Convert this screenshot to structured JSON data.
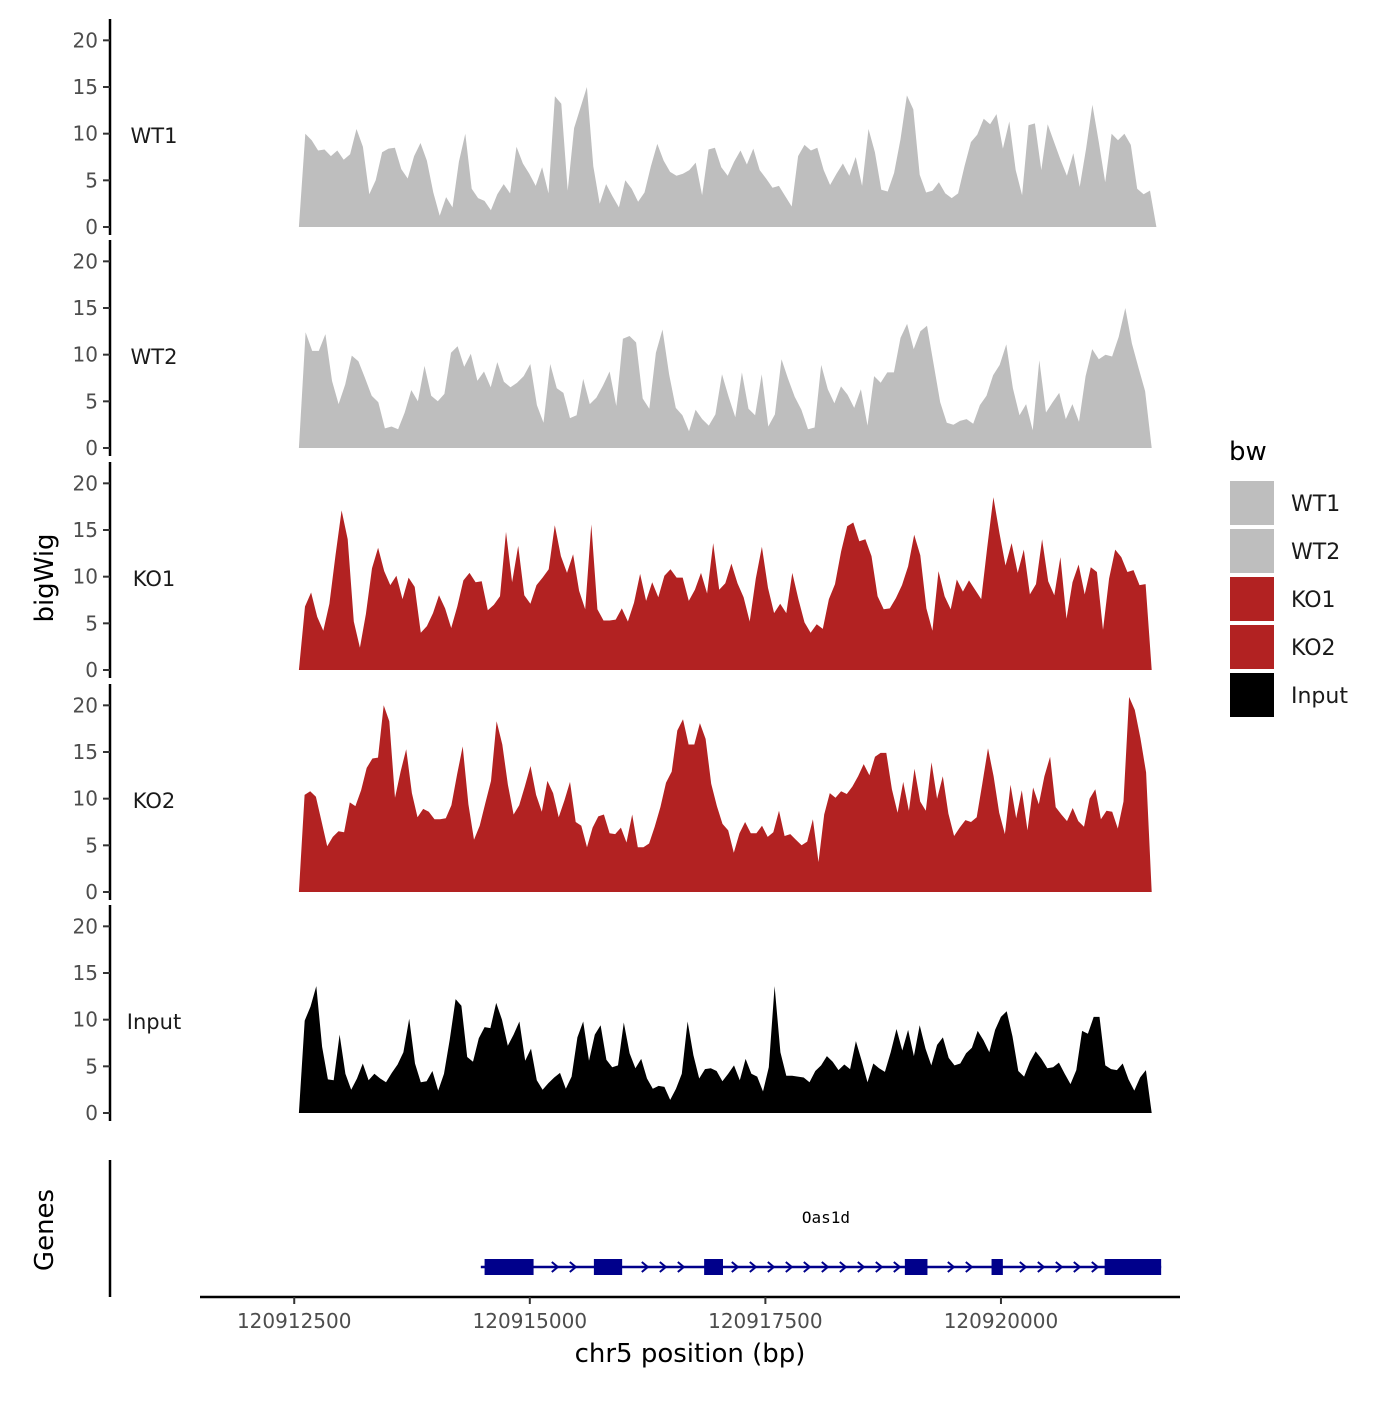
{
  "chart_data": {
    "type": "area",
    "chromosome": "chr5",
    "ylabel": "bigWig",
    "xlabel": "chr5 position (bp)",
    "gene_track_label": "Genes",
    "xlim": [
      120911500,
      120921900
    ],
    "ylim": [
      0,
      21
    ],
    "y_ticks": [
      0,
      5,
      10,
      15,
      20
    ],
    "x_ticks": [
      120912500,
      120915000,
      120917500,
      120920000
    ],
    "x_tick_labels": [
      "120912500",
      "120915000",
      "120917500",
      "120920000"
    ],
    "legend": {
      "title": "bw",
      "entries": [
        {
          "label": "WT1",
          "color": "#bebebe"
        },
        {
          "label": "WT2",
          "color": "#bebebe"
        },
        {
          "label": "KO1",
          "color": "#b22222"
        },
        {
          "label": "KO2",
          "color": "#b22222"
        },
        {
          "label": "Input",
          "color": "#000000"
        }
      ]
    },
    "tracks": [
      {
        "name": "WT1",
        "color": "#bebebe",
        "start": 120912550,
        "end": 120921650,
        "values": [
          0,
          10,
          9.3,
          8.2,
          8.3,
          7.6,
          8.2,
          7.2,
          7.8,
          10.5,
          8.6,
          3.5,
          5,
          8,
          8.4,
          8.5,
          6.2,
          5.2,
          7.6,
          9,
          7.1,
          3.7,
          1.2,
          3.2,
          2.1,
          7,
          10,
          4.1,
          3.1,
          2.8,
          1.8,
          3.5,
          4.6,
          3.6,
          8.6,
          6.8,
          5.7,
          4.4,
          6.4,
          3.6,
          14,
          13.2,
          3.9,
          10.6,
          12.8,
          15,
          6.5,
          2.5,
          4.6,
          3.3,
          2.1,
          5,
          4.1,
          2.7,
          3.7,
          6.5,
          8.9,
          7.1,
          5.9,
          5.5,
          5.7,
          6.1,
          6.9,
          3.4,
          8.3,
          8.5,
          6.4,
          5.5,
          7,
          8.2,
          6.7,
          8.4,
          6.1,
          5.2,
          4.2,
          4.4,
          3.3,
          2.2,
          7.6,
          8.8,
          8.2,
          8.5,
          6.1,
          4.5,
          5.7,
          6.8,
          5.5,
          7.5,
          4.4,
          10.5,
          8,
          4,
          3.8,
          5.8,
          9.4,
          14.1,
          12.6,
          5.6,
          3.7,
          3.9,
          4.8,
          3.6,
          3.1,
          3.6,
          6.5,
          9.1,
          9.9,
          11.6,
          11,
          12.1,
          8.4,
          11.3,
          6.1,
          3.4,
          10.9,
          11.1,
          6.1,
          11,
          9.1,
          7.2,
          5.5,
          7.9,
          4.3,
          8.4,
          13.1,
          9.1,
          4.8,
          10,
          9.3,
          10,
          8.8,
          4.1,
          3.5,
          3.9,
          0
        ]
      },
      {
        "name": "WT2",
        "color": "#bebebe",
        "start": 120912550,
        "end": 120921600,
        "values": [
          0,
          12.4,
          10.4,
          10.4,
          12.2,
          7.2,
          4.7,
          6.8,
          9.9,
          9.3,
          7.5,
          5.6,
          4.9,
          2.1,
          2.3,
          2,
          3.8,
          6.2,
          5,
          8.8,
          5.6,
          5,
          5.8,
          10.2,
          10.9,
          8.7,
          10.1,
          7.2,
          8.2,
          6.5,
          9.2,
          7.1,
          6.5,
          7,
          7.7,
          9,
          4.6,
          2.7,
          9,
          6.4,
          5.9,
          3.2,
          3.5,
          7.4,
          4.7,
          5.4,
          6.7,
          8.2,
          4.5,
          11.7,
          12,
          11.3,
          5.3,
          4.2,
          10.2,
          12.7,
          7.9,
          4.3,
          3.5,
          1.8,
          4.1,
          3.1,
          2.4,
          3.6,
          7.9,
          5.5,
          3.3,
          8.1,
          4.2,
          3.5,
          7.9,
          2.3,
          3.6,
          9.5,
          7.4,
          5.5,
          4.1,
          2,
          2.2,
          8.9,
          6.3,
          4.8,
          6.6,
          5.7,
          4.3,
          6.3,
          2.4,
          7.7,
          7,
          8.1,
          8.1,
          11.8,
          13.3,
          10.6,
          12.5,
          13.1,
          9,
          4.9,
          2.7,
          2.5,
          2.9,
          3.1,
          2.6,
          4.6,
          5.6,
          7.8,
          8.9,
          11.1,
          6.4,
          3.5,
          4.7,
          1.9,
          9.4,
          3.8,
          4.9,
          5.9,
          3.1,
          4.7,
          2.8,
          7.7,
          10.6,
          9.5,
          10,
          9.8,
          11.9,
          15,
          11.2,
          8.6,
          6.1,
          0
        ]
      },
      {
        "name": "KO1",
        "color": "#b22222",
        "start": 120912550,
        "end": 120921600,
        "values": [
          0,
          6.8,
          8.3,
          5.7,
          4.2,
          7.1,
          12.3,
          17.1,
          14,
          5.2,
          2.4,
          6,
          10.9,
          13.1,
          10.6,
          9.1,
          10.1,
          7.6,
          9.9,
          8.9,
          4,
          4.7,
          6.1,
          8,
          6.6,
          4.5,
          6.8,
          9.6,
          10.4,
          9.4,
          9.5,
          6.4,
          7,
          7.9,
          14.8,
          9.4,
          13.3,
          8,
          7.1,
          9.1,
          9.9,
          10.8,
          15.5,
          12.2,
          10.4,
          12.4,
          8.5,
          6.5,
          15.6,
          6.5,
          5.3,
          5.3,
          5.4,
          6.6,
          5.2,
          7.2,
          10.3,
          7.4,
          9.4,
          7.8,
          10.1,
          10.8,
          9.9,
          9.9,
          7.4,
          8.6,
          10.4,
          8.2,
          13.6,
          8.6,
          9.3,
          11.4,
          9.3,
          7.8,
          5.2,
          9.8,
          13.2,
          8.8,
          6.1,
          7.1,
          6.1,
          10.4,
          7.6,
          5.1,
          4,
          4.9,
          4.4,
          7.6,
          9.2,
          12.7,
          15.4,
          15.8,
          13.8,
          14,
          12.2,
          7.9,
          6.5,
          6.6,
          7.7,
          9.1,
          11.1,
          14.5,
          12.3,
          6.6,
          4.2,
          10.6,
          7.9,
          6.5,
          9.7,
          8.4,
          9.6,
          8.6,
          7.6,
          13.2,
          18.5,
          14.7,
          11.2,
          13.6,
          10.4,
          12.9,
          8.1,
          9.2,
          14,
          9.5,
          8,
          12.1,
          5.5,
          9.4,
          11.3,
          8.1,
          11,
          10.5,
          4.3,
          9.8,
          12.9,
          12.1,
          10.5,
          10.7,
          9.1,
          9.2,
          0
        ]
      },
      {
        "name": "KO2",
        "color": "#b22222",
        "start": 120912550,
        "end": 120921600,
        "values": [
          0,
          10.4,
          10.8,
          10.2,
          7.6,
          4.9,
          5.9,
          6.5,
          6.4,
          9.6,
          9.2,
          10.9,
          13.3,
          14.3,
          14.4,
          20,
          18.3,
          10.1,
          12.9,
          15.3,
          10.6,
          8,
          8.9,
          8.6,
          7.8,
          7.8,
          7.9,
          9.3,
          12.6,
          15.6,
          9.4,
          5.6,
          7.1,
          9.5,
          11.9,
          18.3,
          15.8,
          11.5,
          8.3,
          9.3,
          11.3,
          13.5,
          10.4,
          8.6,
          11.9,
          10.6,
          8,
          9.8,
          11.8,
          7.5,
          7.1,
          4.8,
          6.9,
          8.1,
          8.3,
          6.3,
          6.2,
          6.9,
          5.3,
          8.3,
          4.8,
          4.8,
          5.2,
          7,
          9.1,
          11.7,
          12.9,
          17.3,
          18.5,
          15.8,
          15.8,
          18.1,
          16.4,
          11.6,
          9.2,
          7.3,
          6.6,
          4.2,
          6.3,
          7.5,
          6.3,
          6.3,
          7.1,
          5.9,
          6.4,
          8.7,
          6,
          6.2,
          5.6,
          5,
          5.4,
          7.8,
          3.2,
          8.3,
          10.6,
          10.1,
          10.8,
          10.5,
          11.3,
          12.4,
          13.7,
          12.5,
          14.5,
          14.9,
          14.9,
          11,
          8.5,
          11.8,
          8.7,
          13.2,
          9.7,
          8.7,
          13.9,
          10,
          12.4,
          8.4,
          6,
          6.9,
          7.7,
          7.5,
          8,
          11.6,
          15.4,
          12.4,
          8.5,
          6.2,
          11.5,
          7.9,
          10.9,
          6.6,
          11.2,
          9.4,
          12.4,
          14.5,
          9.1,
          8.3,
          7.6,
          9,
          7.6,
          7,
          10,
          11,
          7.8,
          8.7,
          8.6,
          6.8,
          9.7,
          20.9,
          19.5,
          16.5,
          12.8,
          0
        ]
      },
      {
        "name": "Input",
        "color": "#000000",
        "start": 120912550,
        "end": 120921600,
        "values": [
          0,
          9.9,
          11.4,
          13.6,
          7.1,
          3.6,
          3.5,
          8.4,
          4.2,
          2.5,
          3.7,
          5.3,
          3.5,
          4.2,
          3.7,
          3.3,
          4.3,
          5.2,
          6.5,
          10.1,
          5.3,
          3.3,
          3.4,
          4.5,
          2.4,
          4.2,
          7.9,
          12.2,
          11.5,
          6,
          5.5,
          8,
          9.2,
          9.1,
          11.8,
          10,
          7.2,
          8.4,
          9.8,
          5.6,
          6.9,
          3.5,
          2.5,
          3.2,
          3.8,
          4.3,
          2.6,
          3.9,
          8.1,
          9.8,
          5.6,
          8.4,
          9.4,
          5.7,
          4.9,
          5.1,
          9.7,
          6.4,
          4.8,
          5.8,
          3.7,
          2.6,
          2.9,
          2.8,
          1.4,
          2.6,
          4.2,
          9.8,
          6.2,
          3.7,
          4.7,
          4.8,
          4.5,
          3.4,
          4.2,
          5.1,
          3.5,
          5.8,
          4.2,
          3.9,
          2.3,
          4.9,
          13.6,
          6.5,
          4,
          4,
          3.9,
          3.8,
          3.3,
          4.5,
          5.1,
          6.1,
          5.5,
          4.6,
          5.2,
          4.7,
          7.7,
          5.6,
          3.3,
          5.3,
          4.8,
          4.4,
          6.5,
          9,
          6.7,
          8.9,
          6.1,
          9.4,
          6.9,
          5.1,
          7.3,
          8.1,
          5.9,
          5.1,
          5.3,
          6.4,
          7,
          8.8,
          7.8,
          6.5,
          8.9,
          10.3,
          10.9,
          8.2,
          4.5,
          3.9,
          5.5,
          6.6,
          5.8,
          4.8,
          4.9,
          5.4,
          4.2,
          3.1,
          4.6,
          8.8,
          8.5,
          10.3,
          10.3,
          5.1,
          4.7,
          4.6,
          5.3,
          3.6,
          2.4,
          3.8,
          4.6,
          0
        ]
      }
    ],
    "gene": {
      "name": "Oas1d",
      "strand": "+",
      "color": "#00008b",
      "start": 120914480,
      "end": 120921700,
      "exons": [
        [
          120914520,
          120915040
        ],
        [
          120915680,
          120915980
        ],
        [
          120916850,
          120917050
        ],
        [
          120918980,
          120919220
        ],
        [
          120919900,
          120920020
        ],
        [
          120921100,
          120921700
        ]
      ]
    }
  }
}
